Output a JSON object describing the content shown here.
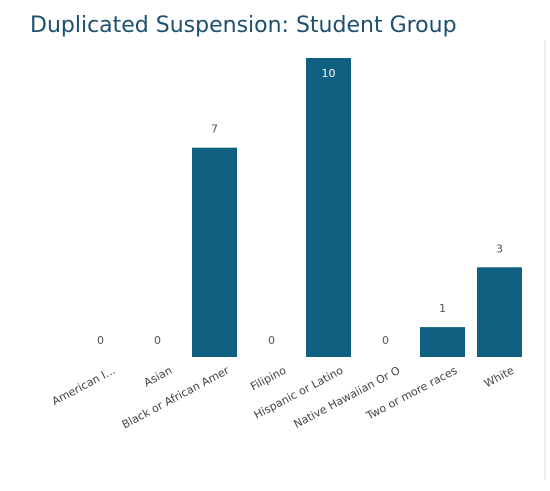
{
  "chart_data": {
    "type": "bar",
    "title": "Duplicated Suspension: Student Group",
    "categories": [
      "American I...",
      "Asian",
      "Black or African Amer",
      "Filipino",
      "Hispanic or Latino",
      "Native Hawaiian Or O",
      "Two or more races",
      "White"
    ],
    "values": [
      0,
      0,
      7,
      0,
      10,
      0,
      1,
      3
    ],
    "color": "#0f5f80"
  }
}
